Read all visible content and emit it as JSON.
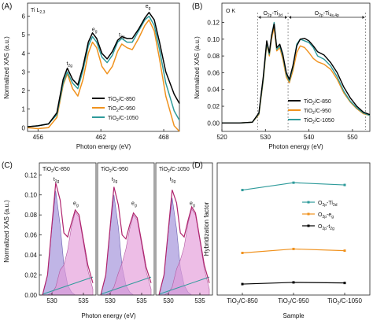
{
  "chart_data": [
    {
      "id": "A",
      "panel_label": "(A)",
      "type": "line",
      "inset_label": "Ti L",
      "inset_sub": "2,3",
      "xlabel": "Photon energy (eV)",
      "ylabel": "Normalized XAS (a.u.)",
      "xlim": [
        455,
        469.5
      ],
      "ylim": [
        -0.2,
        6.7
      ],
      "xticks": [
        456,
        462,
        468
      ],
      "yticks": [
        0,
        1,
        2,
        3,
        4,
        5,
        6
      ],
      "peak_labels": [
        {
          "main": "t",
          "sub": "2g",
          "x": 459.0,
          "y": 3.35
        },
        {
          "main": "e",
          "sub": "g",
          "x": 461.4,
          "y": 5.2
        },
        {
          "main": "t",
          "sub": "2g",
          "x": 464.0,
          "y": 4.9
        },
        {
          "main": "e",
          "sub": "g",
          "x": 466.5,
          "y": 6.45
        }
      ],
      "legend": {
        "position": "bottom-right",
        "entries": [
          "TiO2/C-850",
          "TiO2/C-950",
          "TiO2/C-1050"
        ]
      },
      "series": [
        {
          "name": "TiO2/C-850",
          "color": "#000000",
          "x": [
            455,
            456,
            457,
            457.8,
            458.4,
            458.8,
            459.3,
            459.8,
            460.3,
            460.8,
            461.2,
            461.6,
            462.1,
            462.6,
            463.1,
            463.6,
            464.0,
            464.5,
            465.0,
            465.6,
            466.2,
            466.6,
            467.1,
            467.6,
            468.2,
            469.0,
            469.5
          ],
          "y": [
            0.05,
            0.1,
            0.2,
            0.8,
            2.6,
            3.2,
            2.6,
            2.3,
            3.3,
            4.6,
            5.1,
            4.8,
            4.0,
            3.7,
            4.1,
            4.7,
            4.9,
            4.8,
            4.8,
            5.3,
            5.9,
            6.2,
            5.8,
            4.6,
            3.0,
            1.8,
            1.3
          ]
        },
        {
          "name": "TiO2/C-950",
          "color": "#f0921e",
          "x": [
            455,
            456,
            457,
            457.8,
            458.4,
            458.8,
            459.3,
            459.8,
            460.3,
            460.8,
            461.2,
            461.6,
            462.1,
            462.6,
            463.1,
            463.6,
            464.0,
            464.5,
            465.0,
            465.6,
            466.2,
            466.6,
            467.1,
            467.6,
            468.2,
            469.0,
            469.5
          ],
          "y": [
            0.0,
            -0.05,
            0.0,
            0.55,
            2.3,
            2.9,
            2.1,
            1.7,
            2.6,
            4.0,
            4.6,
            4.3,
            3.3,
            2.9,
            3.3,
            4.1,
            4.5,
            4.3,
            4.2,
            4.8,
            5.5,
            5.8,
            5.2,
            3.7,
            1.7,
            0.1,
            -0.2
          ]
        },
        {
          "name": "TiO2/C-1050",
          "color": "#2f9b9b",
          "x": [
            455,
            456,
            457,
            457.8,
            458.4,
            458.8,
            459.3,
            459.8,
            460.3,
            460.8,
            461.2,
            461.6,
            462.1,
            462.6,
            463.1,
            463.6,
            464.0,
            464.5,
            465.0,
            465.6,
            466.2,
            466.6,
            467.1,
            467.6,
            468.2,
            469.0,
            469.5
          ],
          "y": [
            0.05,
            0.1,
            0.2,
            0.7,
            2.4,
            3.0,
            2.4,
            2.1,
            3.1,
            4.4,
            4.9,
            4.6,
            3.8,
            3.5,
            3.9,
            4.6,
            4.8,
            4.6,
            4.6,
            5.2,
            5.8,
            6.0,
            5.5,
            4.2,
            2.4,
            0.9,
            0.4
          ]
        }
      ]
    },
    {
      "id": "B",
      "panel_label": "(B)",
      "type": "line",
      "inset_label": "O K",
      "xlabel": "Photon energy (eV)",
      "ylabel": "Normalized XAS (a.u.)",
      "xlim": [
        520,
        554
      ],
      "ylim": [
        -0.01,
        0.143
      ],
      "xticks": [
        520,
        530,
        540,
        550
      ],
      "yticks": [
        0.0,
        0.02,
        0.04,
        0.06,
        0.08,
        0.1,
        0.12
      ],
      "region_labels": [
        {
          "main": "O",
          "sub": "2p",
          "main2": "-Ti",
          "sub2": "3d",
          "x_from": 528.2,
          "x_to": 535.2
        },
        {
          "main": "O",
          "sub": "2p",
          "main2": "-Ti",
          "sub2": "4s,4p",
          "x_from": 535.2,
          "x_to": 553
        }
      ],
      "legend": {
        "position": "center-right",
        "entries": [
          "TiO2/C-850",
          "TiO2/C-950",
          "TiO2/C-1050"
        ]
      },
      "series": [
        {
          "name": "TiO2/C-850",
          "color": "#000000",
          "x": [
            520,
            524,
            527,
            528.5,
            529.5,
            530.3,
            530.9,
            531.4,
            532.0,
            532.6,
            533.3,
            534.0,
            534.8,
            535.5,
            536.3,
            537.2,
            538.0,
            539.0,
            540.0,
            541.0,
            542.0,
            543.5,
            545.0,
            546.5,
            548.0,
            549.5,
            551.0,
            552.5,
            554.0
          ],
          "y": [
            0.0,
            0.0,
            0.001,
            0.012,
            0.055,
            0.098,
            0.084,
            0.104,
            0.118,
            0.09,
            0.094,
            0.082,
            0.06,
            0.052,
            0.068,
            0.092,
            0.1,
            0.101,
            0.098,
            0.092,
            0.085,
            0.081,
            0.072,
            0.06,
            0.043,
            0.03,
            0.02,
            0.013,
            0.01
          ]
        },
        {
          "name": "TiO2/C-950",
          "color": "#f0921e",
          "x": [
            520,
            524,
            527,
            528.5,
            529.5,
            530.3,
            530.9,
            531.4,
            532.0,
            532.6,
            533.3,
            534.0,
            534.8,
            535.5,
            536.3,
            537.2,
            538.0,
            539.0,
            540.0,
            541.0,
            542.0,
            543.5,
            545.0,
            546.5,
            548.0,
            549.5,
            551.0,
            552.5,
            554.0
          ],
          "y": [
            0.0,
            0.0,
            0.001,
            0.01,
            0.05,
            0.094,
            0.08,
            0.1,
            0.114,
            0.086,
            0.09,
            0.076,
            0.055,
            0.048,
            0.062,
            0.084,
            0.092,
            0.09,
            0.084,
            0.077,
            0.073,
            0.07,
            0.064,
            0.052,
            0.036,
            0.025,
            0.017,
            0.011,
            0.009
          ]
        },
        {
          "name": "TiO2/C-1050",
          "color": "#2f9b9b",
          "x": [
            520,
            524,
            527,
            528.5,
            529.5,
            530.3,
            530.9,
            531.4,
            532.0,
            532.6,
            533.3,
            534.0,
            534.8,
            535.5,
            536.3,
            537.2,
            538.0,
            539.0,
            540.0,
            541.0,
            542.0,
            543.5,
            545.0,
            546.5,
            548.0,
            549.5,
            551.0,
            552.5,
            554.0
          ],
          "y": [
            0.0,
            0.0,
            0.001,
            0.011,
            0.052,
            0.096,
            0.082,
            0.103,
            0.12,
            0.088,
            0.092,
            0.08,
            0.058,
            0.05,
            0.066,
            0.094,
            0.1,
            0.098,
            0.096,
            0.09,
            0.08,
            0.076,
            0.068,
            0.055,
            0.038,
            0.026,
            0.018,
            0.012,
            0.009
          ]
        }
      ]
    },
    {
      "id": "C",
      "panel_label": "(C)",
      "type": "area",
      "xlabel": "Photon energy (eV)",
      "ylabel": "Normalized XAS (a.u.)",
      "ylim": [
        0,
        0.132
      ],
      "yticks": [
        0.0,
        0.02,
        0.04,
        0.06,
        0.08,
        0.1,
        0.12
      ],
      "xlim": [
        528,
        537
      ],
      "xticks": [
        530,
        535
      ],
      "subpanels": [
        {
          "title": "TiO2/C-850",
          "t2g_label": {
            "main": "t",
            "sub": "2g"
          },
          "eg_label": {
            "main": "e",
            "sub": "g"
          },
          "total_y": [
            0.0,
            0.02,
            0.07,
            0.112,
            0.095,
            0.062,
            0.058,
            0.072,
            0.085,
            0.08,
            0.055,
            0.03,
            0.012
          ],
          "t2g_y": [
            0.0,
            0.02,
            0.068,
            0.104,
            0.07,
            0.03,
            0.01,
            0.003,
            0.0,
            0.0,
            0.0,
            0.0,
            0.0
          ],
          "eg_y": [
            0.0,
            0.0,
            0.002,
            0.008,
            0.025,
            0.03,
            0.045,
            0.068,
            0.083,
            0.078,
            0.052,
            0.025,
            0.006
          ]
        },
        {
          "title": "TiO2/C-950",
          "t2g_label": {
            "main": "t",
            "sub": "2g"
          },
          "eg_label": {
            "main": "e",
            "sub": "g"
          },
          "total_y": [
            0.0,
            0.02,
            0.068,
            0.108,
            0.09,
            0.06,
            0.056,
            0.07,
            0.082,
            0.077,
            0.053,
            0.028,
            0.012
          ],
          "t2g_y": [
            0.0,
            0.02,
            0.066,
            0.1,
            0.068,
            0.028,
            0.01,
            0.003,
            0.0,
            0.0,
            0.0,
            0.0,
            0.0
          ],
          "eg_y": [
            0.0,
            0.0,
            0.002,
            0.008,
            0.022,
            0.032,
            0.046,
            0.066,
            0.08,
            0.075,
            0.05,
            0.024,
            0.006
          ]
        },
        {
          "title": "TiO2/C-1050",
          "t2g_label": {
            "main": "t",
            "sub": "2g"
          },
          "eg_label": {
            "main": "e",
            "sub": "g"
          },
          "total_y": [
            0.0,
            0.02,
            0.066,
            0.105,
            0.092,
            0.062,
            0.058,
            0.074,
            0.088,
            0.082,
            0.056,
            0.03,
            0.012
          ],
          "t2g_y": [
            0.0,
            0.02,
            0.064,
            0.097,
            0.066,
            0.027,
            0.01,
            0.003,
            0.0,
            0.0,
            0.0,
            0.0,
            0.0
          ],
          "eg_y": [
            0.0,
            0.0,
            0.002,
            0.008,
            0.026,
            0.035,
            0.048,
            0.071,
            0.086,
            0.08,
            0.054,
            0.026,
            0.006
          ]
        }
      ],
      "x": [
        528.5,
        529.3,
        530.0,
        530.6,
        531.3,
        531.9,
        532.5,
        533.1,
        533.7,
        534.3,
        535.0,
        535.7,
        536.5
      ],
      "colors": {
        "t2g_fill": "#9e8ed8",
        "eg_fill": "#e49ad8",
        "total_line": "#b0246e",
        "baseline": "#2f9b9b"
      }
    },
    {
      "id": "D",
      "panel_label": "(D)",
      "type": "line",
      "xlabel": "Sample",
      "ylabel": "Hybridization factor",
      "categories": [
        "TiO2/C-850",
        "TiO2/C-950",
        "TiO2/C-1050"
      ],
      "ylim": [
        0,
        1
      ],
      "legend": {
        "position": "top-right",
        "entries": [
          {
            "main": "O",
            "sub": "2p",
            "main2": "-Ti",
            "sub2": "3d"
          },
          {
            "main": "O",
            "sub": "2p",
            "main2": "-e",
            "sub2": "g"
          },
          {
            "main": "O",
            "sub": "2p",
            "main2": "-t",
            "sub2": "2g"
          }
        ]
      },
      "series": [
        {
          "color": "#2f9b9b",
          "values": [
            0.885,
            0.95,
            0.93
          ]
        },
        {
          "color": "#f0921e",
          "values": [
            0.33,
            0.365,
            0.35
          ]
        },
        {
          "color": "#000000",
          "values": [
            0.055,
            0.07,
            0.065
          ]
        }
      ]
    }
  ]
}
